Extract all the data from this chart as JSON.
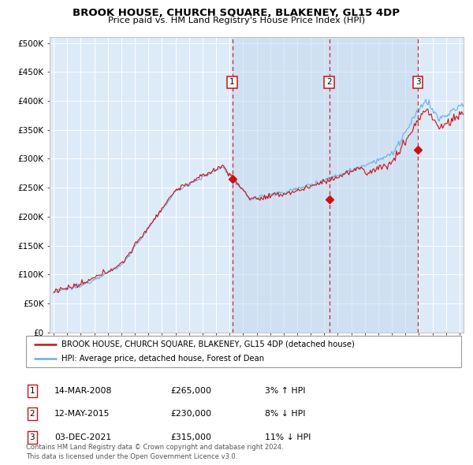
{
  "title": "BROOK HOUSE, CHURCH SQUARE, BLAKENEY, GL15 4DP",
  "subtitle": "Price paid vs. HM Land Registry's House Price Index (HPI)",
  "ytick_vals": [
    0,
    50000,
    100000,
    150000,
    200000,
    250000,
    300000,
    350000,
    400000,
    450000,
    500000
  ],
  "ylim": [
    0,
    510000
  ],
  "xlim_start": 1994.7,
  "xlim_end": 2025.3,
  "sale_dates": [
    2008.2,
    2015.37,
    2021.92
  ],
  "sale_prices": [
    265000,
    230000,
    315000
  ],
  "legend_red_label": "BROOK HOUSE, CHURCH SQUARE, BLAKENEY, GL15 4DP (detached house)",
  "legend_blue_label": "HPI: Average price, detached house, Forest of Dean",
  "table_data": [
    [
      "1",
      "14-MAR-2008",
      "£265,000",
      "3% ↑ HPI"
    ],
    [
      "2",
      "12-MAY-2015",
      "£230,000",
      "8% ↓ HPI"
    ],
    [
      "3",
      "03-DEC-2021",
      "£315,000",
      "11% ↓ HPI"
    ]
  ],
  "footnote": "Contains HM Land Registry data © Crown copyright and database right 2024.\nThis data is licensed under the Open Government Licence v3.0.",
  "hpi_color": "#6aade4",
  "sale_color": "#cc1111",
  "dashed_color": "#cc1111",
  "background_chart": "#ddeaf8",
  "grid_color": "#ffffff",
  "shade_color": "#c5d8f0"
}
